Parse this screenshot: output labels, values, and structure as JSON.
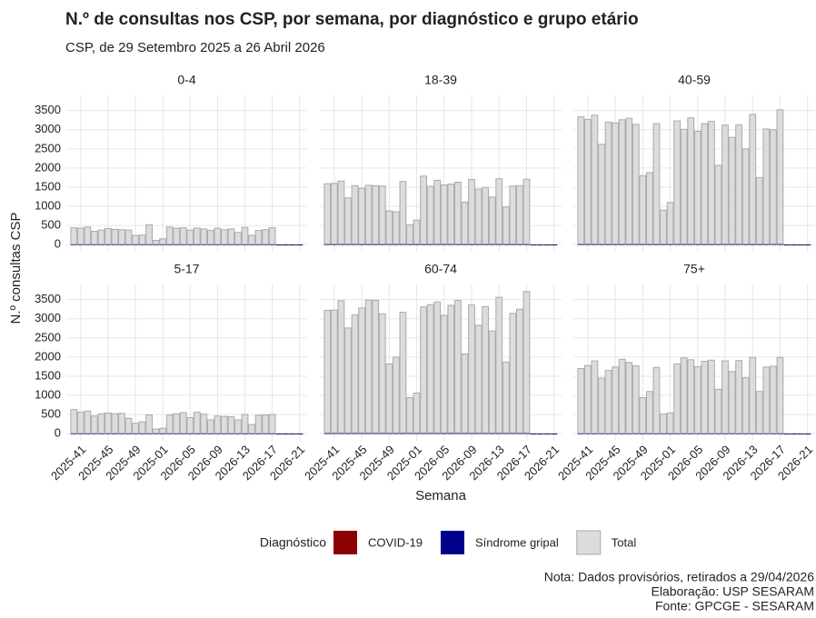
{
  "chart_data": {
    "type": "bar",
    "title": "N.º de consultas nos CSP, por semana, por diagnóstico e grupo etário",
    "subtitle": "CSP, de 29 Setembro 2025 a 26 Abril 2026",
    "x_label": "Semana",
    "y_label": "N.º consultas CSP",
    "legend_title": "Diagnóstico",
    "categories": [
      null,
      "2025-41",
      null,
      null,
      null,
      "2025-45",
      null,
      null,
      null,
      "2025-49",
      null,
      null,
      null,
      "2025-01",
      null,
      null,
      null,
      "2026-05",
      null,
      null,
      null,
      "2026-09",
      null,
      null,
      null,
      "2026-13",
      null,
      null,
      null,
      "2026-17",
      null,
      null,
      null,
      "2026-21"
    ],
    "ylim": [
      -186,
      3896
    ],
    "yticks": [
      0,
      500,
      1000,
      1500,
      2000,
      2500,
      3000,
      3500
    ],
    "grid": true,
    "series": [
      {
        "name": "COVID-19",
        "color": "#8b0000"
      },
      {
        "name": "Síndrome gripal",
        "color": "#00008b"
      },
      {
        "name": "Total",
        "color": "#dcdcdc",
        "edge": "#aaaaaa"
      }
    ],
    "facets": [
      {
        "title": "0-4",
        "values": [
          [
            5,
            5,
            5,
            5,
            5,
            5,
            5,
            5,
            5,
            5,
            5,
            5,
            5,
            5,
            5,
            5,
            5,
            5,
            5,
            5,
            5,
            5,
            5,
            5,
            5,
            5,
            5,
            5,
            5,
            5,
            0,
            0,
            0,
            0
          ],
          [
            5,
            5,
            5,
            5,
            5,
            5,
            5,
            5,
            5,
            5,
            5,
            5,
            5,
            5,
            5,
            5,
            5,
            5,
            5,
            5,
            5,
            5,
            5,
            5,
            5,
            5,
            5,
            5,
            5,
            5,
            0,
            0,
            0,
            0
          ],
          [
            440,
            430,
            460,
            350,
            380,
            420,
            400,
            390,
            380,
            240,
            250,
            520,
            110,
            150,
            460,
            430,
            440,
            380,
            430,
            410,
            370,
            430,
            390,
            410,
            320,
            450,
            240,
            370,
            390,
            440,
            0,
            0,
            0,
            0
          ]
        ]
      },
      {
        "title": "18-39",
        "values": [
          [
            10,
            10,
            10,
            10,
            10,
            10,
            10,
            10,
            10,
            10,
            10,
            10,
            10,
            10,
            10,
            10,
            10,
            10,
            10,
            10,
            10,
            10,
            10,
            10,
            10,
            10,
            10,
            10,
            10,
            10,
            0,
            0,
            0,
            0
          ],
          [
            10,
            10,
            10,
            10,
            10,
            10,
            10,
            10,
            10,
            10,
            10,
            10,
            10,
            10,
            10,
            10,
            10,
            10,
            10,
            10,
            10,
            10,
            10,
            10,
            10,
            10,
            10,
            10,
            10,
            10,
            0,
            0,
            0,
            0
          ],
          [
            1590,
            1600,
            1660,
            1220,
            1540,
            1470,
            1550,
            1540,
            1530,
            880,
            860,
            1650,
            520,
            640,
            1790,
            1520,
            1680,
            1560,
            1580,
            1630,
            1110,
            1700,
            1450,
            1490,
            1240,
            1720,
            980,
            1530,
            1540,
            1710,
            0,
            0,
            0,
            0
          ]
        ]
      },
      {
        "title": "40-59",
        "values": [
          [
            10,
            10,
            10,
            10,
            10,
            10,
            10,
            10,
            10,
            10,
            10,
            10,
            10,
            10,
            10,
            10,
            10,
            10,
            10,
            10,
            10,
            10,
            10,
            10,
            10,
            10,
            10,
            10,
            10,
            10,
            0,
            0,
            0,
            0
          ],
          [
            10,
            10,
            10,
            10,
            10,
            10,
            10,
            10,
            10,
            10,
            10,
            10,
            10,
            10,
            10,
            10,
            10,
            10,
            10,
            10,
            10,
            10,
            10,
            10,
            10,
            10,
            10,
            10,
            10,
            10,
            0,
            0,
            0,
            0
          ],
          [
            3340,
            3270,
            3380,
            2620,
            3200,
            3180,
            3260,
            3300,
            3140,
            1800,
            1880,
            3160,
            900,
            1100,
            3230,
            3010,
            3310,
            2960,
            3160,
            3220,
            2070,
            3120,
            2800,
            3130,
            2500,
            3400,
            1750,
            3020,
            3000,
            3520,
            0,
            0,
            0,
            0
          ]
        ]
      },
      {
        "title": "5-17",
        "values": [
          [
            5,
            5,
            5,
            5,
            5,
            5,
            5,
            5,
            5,
            5,
            5,
            5,
            5,
            5,
            5,
            5,
            5,
            5,
            5,
            5,
            5,
            5,
            5,
            5,
            5,
            5,
            5,
            5,
            5,
            5,
            0,
            0,
            0,
            0
          ],
          [
            5,
            5,
            5,
            5,
            5,
            5,
            5,
            5,
            5,
            5,
            5,
            5,
            5,
            5,
            5,
            5,
            5,
            5,
            5,
            5,
            5,
            5,
            5,
            5,
            5,
            5,
            5,
            5,
            5,
            5,
            0,
            0,
            0,
            0
          ],
          [
            630,
            560,
            590,
            460,
            520,
            540,
            520,
            530,
            400,
            270,
            310,
            490,
            120,
            140,
            490,
            520,
            550,
            420,
            560,
            510,
            360,
            460,
            450,
            440,
            360,
            500,
            240,
            480,
            490,
            500,
            0,
            0,
            0,
            0
          ]
        ]
      },
      {
        "title": "60-74",
        "values": [
          [
            10,
            10,
            10,
            10,
            10,
            10,
            10,
            10,
            10,
            10,
            10,
            10,
            10,
            10,
            10,
            10,
            10,
            10,
            10,
            10,
            10,
            10,
            10,
            10,
            10,
            10,
            10,
            10,
            10,
            10,
            0,
            0,
            0,
            0
          ],
          [
            10,
            10,
            10,
            10,
            10,
            10,
            10,
            10,
            10,
            10,
            10,
            10,
            10,
            10,
            10,
            10,
            10,
            10,
            10,
            10,
            10,
            10,
            10,
            10,
            10,
            10,
            10,
            10,
            10,
            10,
            0,
            0,
            0,
            0
          ],
          [
            3220,
            3230,
            3470,
            2760,
            3100,
            3280,
            3490,
            3480,
            3130,
            1820,
            2000,
            3170,
            940,
            1060,
            3310,
            3370,
            3440,
            3090,
            3350,
            3480,
            2080,
            3360,
            2830,
            3320,
            2680,
            3560,
            1870,
            3140,
            3250,
            3710,
            0,
            0,
            0,
            0
          ]
        ]
      },
      {
        "title": "75+",
        "values": [
          [
            5,
            5,
            5,
            5,
            5,
            5,
            5,
            5,
            5,
            5,
            5,
            5,
            5,
            5,
            5,
            5,
            5,
            5,
            5,
            5,
            5,
            5,
            5,
            5,
            5,
            5,
            5,
            5,
            5,
            5,
            0,
            0,
            0,
            0
          ],
          [
            5,
            5,
            5,
            5,
            5,
            5,
            5,
            5,
            5,
            5,
            5,
            5,
            5,
            5,
            5,
            5,
            5,
            5,
            5,
            5,
            5,
            5,
            5,
            5,
            5,
            5,
            5,
            5,
            5,
            5,
            0,
            0,
            0,
            0
          ],
          [
            1700,
            1780,
            1900,
            1450,
            1650,
            1740,
            1940,
            1860,
            1770,
            940,
            1100,
            1730,
            510,
            540,
            1820,
            1980,
            1930,
            1750,
            1890,
            1920,
            1160,
            1900,
            1620,
            1910,
            1460,
            1990,
            1100,
            1740,
            1760,
            1990,
            0,
            0,
            0,
            0
          ]
        ]
      }
    ],
    "notes": [
      "Nota: Dados provisórios, retirados a 29/04/2026",
      "Elaboração: USP SESARAM",
      "Fonte: GPCGE - SESARAM"
    ]
  }
}
